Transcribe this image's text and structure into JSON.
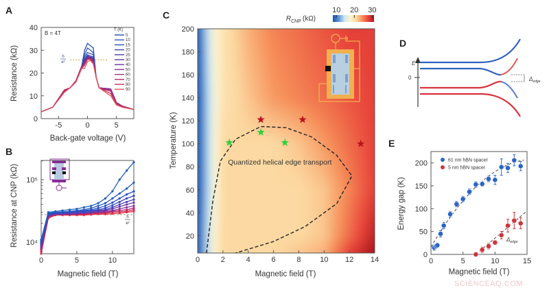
{
  "panels": {
    "A": "A",
    "B": "B",
    "C": "C",
    "D": "D",
    "E": "E"
  },
  "watermark": "SCIENCEAQ.COM",
  "chart_data": [
    {
      "panel": "A",
      "type": "line",
      "xlabel": "Back-gate voltage (V)",
      "ylabel": "Resistance (kΩ)",
      "xlim": [
        -8,
        8
      ],
      "ylim": [
        0,
        40
      ],
      "xticks": [
        -5,
        0,
        5
      ],
      "yticks": [
        0,
        10,
        20,
        30,
        40
      ],
      "annotation": "B = 4T",
      "threshold_label": {
        "num": "h",
        "den": "e²"
      },
      "threshold_value": 25.8,
      "legend_title": "T (K)",
      "legend_placement": "top-right",
      "x": [
        -8,
        -6,
        -4,
        -3,
        -2,
        -1,
        -0.5,
        0,
        0.5,
        1,
        1.5,
        2,
        4,
        5,
        6,
        8
      ],
      "series": [
        {
          "name": "5",
          "color": "#1f4fa8",
          "values": [
            3,
            5,
            12.5,
            13.5,
            16.5,
            23,
            30,
            33,
            32,
            31,
            18,
            13.5,
            13,
            7,
            5.5,
            4
          ]
        },
        {
          "name": "10",
          "color": "#2a5ab8",
          "values": [
            3,
            5,
            12.5,
            13.5,
            16.5,
            23,
            28,
            31,
            30,
            29,
            18,
            13.5,
            13,
            7,
            5.5,
            4
          ]
        },
        {
          "name": "15",
          "color": "#2f4fb0",
          "values": [
            3,
            5,
            12.5,
            13.5,
            16.5,
            23,
            27,
            29,
            28.5,
            28,
            18,
            13.5,
            13,
            7,
            5.5,
            4
          ]
        },
        {
          "name": "20",
          "color": "#3a45a8",
          "values": [
            3,
            5,
            12.5,
            13.5,
            16.5,
            23,
            26,
            28,
            27.5,
            27,
            18,
            13.5,
            13,
            7,
            5.5,
            4
          ]
        },
        {
          "name": "25",
          "color": "#4a3ea6",
          "values": [
            3,
            5,
            12.5,
            13.5,
            16.5,
            23,
            25.5,
            27.5,
            27,
            26.5,
            18,
            13.5,
            13,
            7,
            5.5,
            4
          ]
        },
        {
          "name": "30",
          "color": "#5c3aa0",
          "values": [
            3,
            5,
            12.5,
            13.5,
            16.5,
            23,
            25,
            27,
            27,
            26,
            18,
            13.5,
            13,
            7,
            5.5,
            4
          ]
        },
        {
          "name": "40",
          "color": "#703598",
          "values": [
            3,
            5,
            12.5,
            13.5,
            16.5,
            23,
            25,
            26.8,
            26.8,
            26,
            18,
            13.5,
            13,
            7,
            5.5,
            4
          ]
        },
        {
          "name": "50",
          "color": "#86308e",
          "values": [
            3,
            5,
            12.5,
            13.5,
            16.5,
            23,
            24.5,
            26.5,
            26.5,
            25.5,
            18,
            13.5,
            13,
            7,
            5.5,
            4
          ]
        },
        {
          "name": "60",
          "color": "#9c2c80",
          "values": [
            3,
            5,
            12.5,
            13.5,
            16.5,
            22.5,
            24,
            26.3,
            26.3,
            25,
            18,
            13.5,
            12.5,
            7,
            5.5,
            4
          ]
        },
        {
          "name": "70",
          "color": "#b42a70",
          "values": [
            3,
            5,
            12.5,
            13.5,
            16.5,
            22.5,
            24,
            26,
            26,
            25,
            18,
            13.5,
            12,
            6.5,
            5.5,
            4
          ]
        },
        {
          "name": "80",
          "color": "#c92c5c",
          "values": [
            3,
            5,
            12,
            13.5,
            16,
            22,
            23.5,
            26,
            26,
            24.5,
            18,
            13.5,
            11,
            6.5,
            5,
            4
          ]
        },
        {
          "name": "90",
          "color": "#e05a5a",
          "values": [
            3,
            5,
            11.5,
            13.5,
            16,
            22,
            22,
            25,
            25.5,
            24,
            18,
            13.5,
            10,
            6,
            5,
            4
          ]
        }
      ]
    },
    {
      "panel": "B",
      "type": "line",
      "xlabel": "Magnetic field (T)",
      "ylabel": "Resistance at CNP (kΩ)",
      "yscale": "log",
      "xlim": [
        0,
        13
      ],
      "ylim": [
        6500,
        200000
      ],
      "xticks": [
        0,
        5,
        10
      ],
      "yticks": [
        {
          "value": 10000,
          "label": "10⁴"
        },
        {
          "value": 100000,
          "label": "10⁵"
        }
      ],
      "threshold_label": {
        "num": "h",
        "den": "e²"
      },
      "threshold_value": 27500,
      "x": [
        0,
        1,
        2,
        3,
        4,
        5,
        6,
        7,
        8,
        9,
        10,
        11,
        12,
        13
      ],
      "series": [
        {
          "color": "#1f5fb8",
          "values": [
            11000,
            30000,
            31000,
            32000,
            33000,
            34000,
            36000,
            38000,
            42000,
            50000,
            65000,
            100000,
            140000,
            190000
          ]
        },
        {
          "color": "#2458c0",
          "values": [
            10500,
            29000,
            30000,
            30500,
            31000,
            32000,
            33000,
            35000,
            38000,
            42000,
            50000,
            60000,
            72000,
            90000
          ]
        },
        {
          "color": "#2a50c4",
          "values": [
            10000,
            28000,
            29500,
            30000,
            30500,
            31000,
            32000,
            33000,
            35000,
            38000,
            43000,
            50000,
            58000,
            65000
          ]
        },
        {
          "color": "#3548c0",
          "values": [
            9500,
            28000,
            29000,
            29500,
            30000,
            30500,
            31000,
            32000,
            33000,
            35000,
            39000,
            44000,
            50000,
            55000
          ]
        },
        {
          "color": "#4a40b8",
          "values": [
            9000,
            27000,
            28500,
            29000,
            29000,
            29500,
            30000,
            31000,
            32000,
            33000,
            36000,
            40000,
            44000,
            48000
          ]
        },
        {
          "color": "#6a38a8",
          "values": [
            8500,
            26500,
            28000,
            28500,
            28500,
            29000,
            29500,
            30000,
            31000,
            32000,
            34000,
            37000,
            40000,
            43000
          ]
        },
        {
          "color": "#8c3094",
          "values": [
            8000,
            26000,
            28000,
            28000,
            28000,
            28500,
            29000,
            29500,
            30000,
            31000,
            32000,
            34000,
            36000,
            38000
          ]
        },
        {
          "color": "#b02a78",
          "values": [
            7500,
            25500,
            27500,
            27500,
            28000,
            28000,
            28500,
            29000,
            29500,
            30000,
            31000,
            32000,
            33000,
            35000
          ]
        },
        {
          "color": "#d02a50",
          "values": [
            7000,
            25000,
            27500,
            27500,
            27500,
            27500,
            28000,
            28000,
            29000,
            29000,
            30000,
            30500,
            31000,
            33000
          ]
        },
        {
          "color": "#e8303c",
          "values": [
            6500,
            24000,
            27000,
            27000,
            27000,
            27000,
            27000,
            27500,
            28000,
            28000,
            28500,
            29000,
            30000,
            31000
          ]
        }
      ]
    },
    {
      "panel": "C",
      "type": "heatmap",
      "xlabel": "Magnetic field (T)",
      "ylabel": "Temperature (K)",
      "xlim": [
        0,
        14
      ],
      "ylim": [
        5,
        200
      ],
      "xticks": [
        0,
        2,
        4,
        6,
        8,
        10,
        12,
        14
      ],
      "yticks": [
        20,
        40,
        60,
        80,
        100,
        120,
        140,
        160,
        180,
        200
      ],
      "colorbar": {
        "symbol": "R",
        "subscript": "CNP",
        "unit": "(kΩ)",
        "ticks": [
          10,
          20,
          30
        ],
        "range": [
          8,
          31
        ],
        "colors": [
          "#1c4ea8",
          "#5a96d8",
          "#cfe8f2",
          "#fdf3cf",
          "#fcd8a0",
          "#f6905a",
          "#e8453a",
          "#a8141e"
        ]
      },
      "x": [
        0,
        1,
        2,
        4,
        6,
        8,
        10,
        12,
        14
      ],
      "y": [
        5,
        20,
        60,
        100,
        140,
        200
      ],
      "z": [
        [
          8,
          16,
          21,
          21,
          21,
          22,
          23,
          28,
          31
        ],
        [
          8,
          16,
          21,
          21,
          21,
          21,
          22,
          26,
          30
        ],
        [
          8,
          15,
          21,
          21,
          21,
          21,
          22,
          25,
          28
        ],
        [
          8,
          15,
          21,
          21,
          21,
          22,
          24,
          26,
          28
        ],
        [
          8,
          15,
          20,
          22,
          24,
          25,
          26,
          27,
          28
        ],
        [
          8,
          16,
          20,
          23,
          25,
          26,
          27,
          28,
          28
        ]
      ],
      "region_label": "Quantized helical edge transport",
      "region_boundary": [
        [
          0.7,
          5
        ],
        [
          1.2,
          50
        ],
        [
          1.8,
          85
        ],
        [
          3,
          104
        ],
        [
          5,
          115
        ],
        [
          7,
          114
        ],
        [
          9,
          106
        ],
        [
          11,
          90
        ],
        [
          12.2,
          72
        ],
        [
          11,
          48
        ],
        [
          8.5,
          28
        ],
        [
          6,
          15
        ],
        [
          3,
          5
        ]
      ],
      "stars": [
        {
          "x": 5,
          "y": 121,
          "color": "#b8141e"
        },
        {
          "x": 8.3,
          "y": 121,
          "color": "#b8141e"
        },
        {
          "x": 12.9,
          "y": 100,
          "color": "#b8141e"
        },
        {
          "x": 2.5,
          "y": 101,
          "color": "#30d040"
        },
        {
          "x": 5,
          "y": 110,
          "color": "#30d040"
        },
        {
          "x": 6.9,
          "y": 101,
          "color": "#30d040"
        }
      ]
    },
    {
      "panel": "E",
      "type": "scatter",
      "xlabel": "Magnetic field (T)",
      "ylabel": "Energy gap (K)",
      "xlim": [
        0,
        15
      ],
      "ylim": [
        0,
        225
      ],
      "xticks": [
        0,
        5,
        10,
        15
      ],
      "yticks": [
        0,
        50,
        100,
        150,
        200
      ],
      "legend_placement": "top-left",
      "annotation": {
        "symbol": "Δ",
        "subscript": "edge"
      },
      "series": [
        {
          "name": "61 nm hBN spacer",
          "color": "#2a64c8",
          "x": [
            0.5,
            0.8,
            1,
            1.5,
            2,
            3,
            4,
            5,
            6,
            7,
            8,
            9,
            10,
            11,
            12,
            13,
            14
          ],
          "y": [
            15,
            18,
            20,
            45,
            63,
            88,
            110,
            121,
            137,
            153,
            154,
            165,
            163,
            191,
            189,
            206,
            193
          ],
          "err": [
            6,
            5,
            5,
            7,
            7,
            6,
            6,
            6,
            6,
            6,
            5,
            6,
            10,
            18,
            10,
            12,
            10
          ]
        },
        {
          "name": "5 nm hBN spacer",
          "color": "#d0343c",
          "x": [
            7,
            8,
            9,
            10,
            11,
            12,
            13,
            14
          ],
          "y": [
            0,
            10,
            18,
            26,
            42,
            63,
            74,
            68
          ],
          "err": [
            2,
            6,
            6,
            5,
            8,
            14,
            18,
            12
          ]
        }
      ]
    }
  ],
  "diagram_D": {
    "axis_label": "E",
    "zero_label": "0",
    "gap_symbol": "Δ",
    "gap_subscript": "edge"
  }
}
